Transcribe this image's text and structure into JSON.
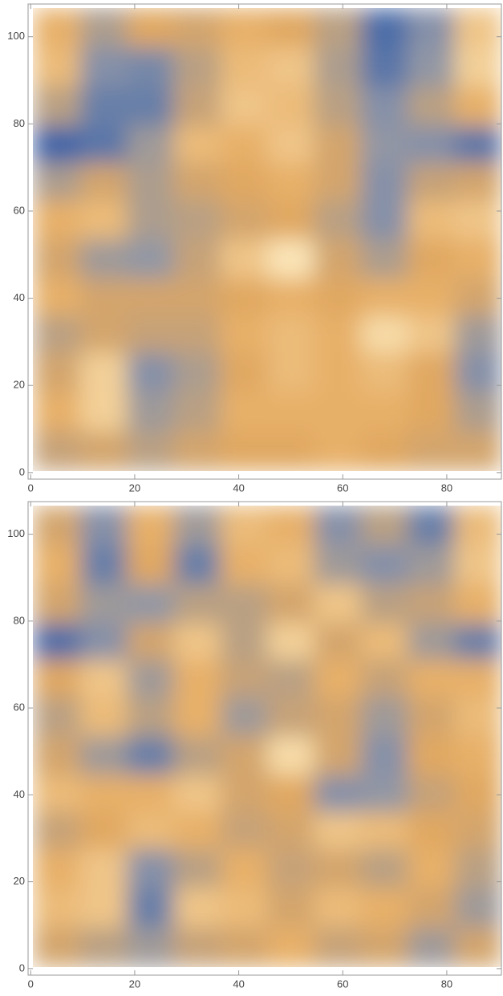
{
  "chart_data": [
    {
      "type": "heatmap",
      "x": [
        5,
        14,
        23,
        32,
        41,
        50,
        59,
        68,
        77,
        86
      ],
      "y": [
        102,
        93,
        84,
        75,
        67,
        58,
        49,
        40,
        32,
        23,
        14,
        5
      ],
      "z": [
        [
          0.7,
          0.45,
          0.65,
          0.6,
          0.7,
          0.65,
          0.5,
          0.1,
          0.3,
          0.8
        ],
        [
          0.75,
          0.3,
          0.25,
          0.5,
          0.75,
          0.8,
          0.45,
          0.15,
          0.35,
          0.85
        ],
        [
          0.5,
          0.2,
          0.2,
          0.55,
          0.8,
          0.75,
          0.5,
          0.3,
          0.5,
          0.7
        ],
        [
          0.05,
          0.15,
          0.4,
          0.75,
          0.7,
          0.8,
          0.6,
          0.35,
          0.3,
          0.15
        ],
        [
          0.45,
          0.6,
          0.45,
          0.6,
          0.65,
          0.7,
          0.6,
          0.3,
          0.55,
          0.6
        ],
        [
          0.7,
          0.75,
          0.45,
          0.5,
          0.6,
          0.65,
          0.5,
          0.3,
          0.75,
          0.8
        ],
        [
          0.6,
          0.4,
          0.35,
          0.55,
          0.8,
          0.95,
          0.6,
          0.45,
          0.65,
          0.7
        ],
        [
          0.7,
          0.6,
          0.6,
          0.6,
          0.65,
          0.7,
          0.65,
          0.7,
          0.7,
          0.6
        ],
        [
          0.5,
          0.6,
          0.55,
          0.55,
          0.7,
          0.75,
          0.7,
          0.9,
          0.8,
          0.4
        ],
        [
          0.6,
          0.85,
          0.3,
          0.45,
          0.65,
          0.75,
          0.7,
          0.75,
          0.65,
          0.3
        ],
        [
          0.7,
          0.85,
          0.4,
          0.5,
          0.7,
          0.7,
          0.7,
          0.7,
          0.65,
          0.45
        ],
        [
          0.55,
          0.6,
          0.5,
          0.6,
          0.65,
          0.65,
          0.7,
          0.65,
          0.6,
          0.6
        ]
      ],
      "colors": [
        "#2f5ca8",
        "#8e96a8",
        "#e4a95e",
        "#fff0c8"
      ],
      "smooth": true,
      "xlim": [
        -0.5,
        90.5
      ],
      "ylim": [
        -1.5,
        107.5
      ],
      "xticks": [
        0,
        20,
        40,
        60,
        80
      ],
      "yticks": [
        0,
        20,
        40,
        60,
        80,
        100
      ]
    },
    {
      "type": "heatmap",
      "x": [
        5,
        14,
        23,
        32,
        41,
        50,
        59,
        68,
        77,
        86
      ],
      "y": [
        102,
        93,
        84,
        75,
        67,
        58,
        49,
        40,
        32,
        23,
        14,
        5
      ],
      "z": [
        [
          0.6,
          0.3,
          0.7,
          0.4,
          0.75,
          0.7,
          0.3,
          0.5,
          0.2,
          0.75
        ],
        [
          0.7,
          0.2,
          0.65,
          0.2,
          0.7,
          0.75,
          0.4,
          0.3,
          0.4,
          0.8
        ],
        [
          0.6,
          0.4,
          0.35,
          0.5,
          0.5,
          0.6,
          0.8,
          0.5,
          0.55,
          0.7
        ],
        [
          0.1,
          0.3,
          0.6,
          0.8,
          0.5,
          0.85,
          0.6,
          0.75,
          0.4,
          0.2
        ],
        [
          0.65,
          0.8,
          0.4,
          0.7,
          0.55,
          0.5,
          0.7,
          0.55,
          0.7,
          0.7
        ],
        [
          0.5,
          0.75,
          0.5,
          0.7,
          0.4,
          0.55,
          0.6,
          0.4,
          0.6,
          0.75
        ],
        [
          0.6,
          0.4,
          0.2,
          0.5,
          0.6,
          0.9,
          0.6,
          0.3,
          0.65,
          0.7
        ],
        [
          0.75,
          0.7,
          0.7,
          0.8,
          0.6,
          0.65,
          0.3,
          0.35,
          0.55,
          0.65
        ],
        [
          0.55,
          0.65,
          0.75,
          0.7,
          0.55,
          0.6,
          0.8,
          0.75,
          0.65,
          0.6
        ],
        [
          0.7,
          0.8,
          0.3,
          0.5,
          0.7,
          0.55,
          0.6,
          0.5,
          0.7,
          0.5
        ],
        [
          0.75,
          0.8,
          0.2,
          0.8,
          0.75,
          0.6,
          0.75,
          0.7,
          0.6,
          0.4
        ],
        [
          0.6,
          0.5,
          0.4,
          0.55,
          0.6,
          0.7,
          0.55,
          0.6,
          0.4,
          0.6
        ]
      ],
      "colors": [
        "#2f5ca8",
        "#8e96a8",
        "#e4a95e",
        "#fff0c8"
      ],
      "smooth": true,
      "xlim": [
        -0.5,
        90.5
      ],
      "ylim": [
        -1.5,
        107.5
      ],
      "xticks": [
        0,
        20,
        40,
        60,
        80
      ],
      "yticks": [
        0,
        20,
        40,
        60,
        80,
        100
      ]
    }
  ]
}
